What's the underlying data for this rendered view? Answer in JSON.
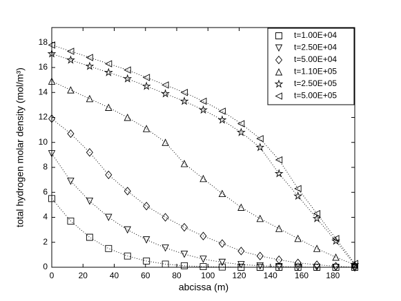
{
  "chart_data": {
    "type": "line",
    "xlabel": "abcissa (m)",
    "ylabel": "total hydrogen molar density (mol/m³)",
    "x": [
      0,
      12.125,
      24.25,
      36.375,
      48.5,
      60.625,
      72.75,
      84.875,
      97,
      109.125,
      121.25,
      133.375,
      145.5,
      157.625,
      169.75,
      181.875,
      194
    ],
    "series": [
      {
        "name": "t=1.00E+04",
        "color": "#000000",
        "marker": "square",
        "values": [
          5.5,
          3.7,
          2.4,
          1.5,
          0.9,
          0.5,
          0.25,
          0.12,
          0.05,
          0.02,
          0,
          0,
          0,
          0,
          0,
          0,
          0
        ]
      },
      {
        "name": "t=2.50E+04",
        "color": "#000000",
        "marker": "triangle-down",
        "values": [
          9.1,
          6.9,
          5.3,
          4.0,
          3.0,
          2.2,
          1.55,
          1.05,
          0.65,
          0.4,
          0.22,
          0.12,
          0.06,
          0.02,
          0,
          0,
          0
        ]
      },
      {
        "name": "t=5.00E+04",
        "color": "#000000",
        "marker": "diamond",
        "values": [
          11.9,
          10.7,
          9.2,
          7.4,
          6.1,
          4.9,
          4.0,
          3.2,
          2.5,
          1.9,
          1.3,
          0.9,
          0.6,
          0.35,
          0.2,
          0.08,
          0
        ]
      },
      {
        "name": "t=1.10E+05",
        "color": "#000000",
        "marker": "triangle-up",
        "values": [
          14.9,
          14.2,
          13.5,
          12.8,
          12.0,
          11.1,
          10.0,
          8.3,
          7.1,
          5.9,
          4.8,
          3.9,
          3.1,
          2.3,
          1.5,
          0.8,
          0.2
        ]
      },
      {
        "name": "t=2.50E+05",
        "color": "#000000",
        "marker": "star",
        "values": [
          17.1,
          16.6,
          16.1,
          15.6,
          15.1,
          14.5,
          13.9,
          13.3,
          12.6,
          11.8,
          10.8,
          9.6,
          7.5,
          5.7,
          3.9,
          2.1,
          0.2
        ]
      },
      {
        "name": "t=5.00E+05",
        "color": "#000000",
        "marker": "triangle-left",
        "values": [
          17.8,
          17.3,
          16.8,
          16.3,
          15.8,
          15.2,
          14.6,
          14.0,
          13.3,
          12.5,
          11.5,
          10.3,
          8.6,
          6.3,
          4.3,
          2.3,
          0.3
        ]
      }
    ],
    "xlim": [
      0,
      194
    ],
    "xticks": [
      0,
      20,
      40,
      60,
      80,
      100,
      120,
      140,
      160,
      180
    ],
    "ylim": [
      0,
      19.2
    ],
    "yticks": [
      0,
      2,
      4,
      6,
      8,
      10,
      12,
      14,
      16,
      18
    ],
    "grid": false,
    "legend": "upper right"
  }
}
